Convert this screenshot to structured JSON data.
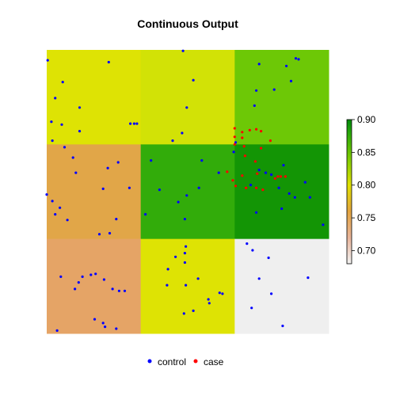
{
  "chart_data": {
    "type": "heatmap",
    "title": "Continuous Output",
    "xlabel": "",
    "ylabel": "",
    "grid": false,
    "xlim": [
      0,
      3
    ],
    "ylim": [
      0,
      3
    ],
    "cells": [
      {
        "col": 0,
        "row": 2,
        "color": "#DEE304"
      },
      {
        "col": 1,
        "row": 2,
        "color": "#D2E206"
      },
      {
        "col": 2,
        "row": 2,
        "color": "#6DC806"
      },
      {
        "col": 0,
        "row": 1,
        "color": "#E1A648"
      },
      {
        "col": 1,
        "row": 1,
        "color": "#32AC0A"
      },
      {
        "col": 2,
        "row": 1,
        "color": "#139505"
      },
      {
        "col": 0,
        "row": 0,
        "color": "#E5A466"
      },
      {
        "col": 1,
        "row": 0,
        "color": "#DEE304"
      },
      {
        "col": 2,
        "row": 0,
        "color": "#EFEFEF"
      }
    ],
    "colorbar": {
      "range": [
        0.68,
        0.9
      ],
      "ticks": [
        "0.70",
        "0.75",
        "0.80",
        "0.85",
        "0.90"
      ],
      "tick_values": [
        0.7,
        0.75,
        0.8,
        0.85,
        0.9
      ],
      "stops": [
        {
          "value": 0.68,
          "color": "#F2F2F2"
        },
        {
          "value": 0.72,
          "color": "#E8B49A"
        },
        {
          "value": 0.76,
          "color": "#E3A43E"
        },
        {
          "value": 0.8,
          "color": "#E0E000"
        },
        {
          "value": 0.84,
          "color": "#7FCC00"
        },
        {
          "value": 0.88,
          "color": "#28A80A"
        },
        {
          "value": 0.9,
          "color": "#00890A"
        }
      ]
    },
    "legend": {
      "position": "bottom",
      "entries": [
        {
          "label": "control",
          "color": "#0000FF"
        },
        {
          "label": "case",
          "color": "#FF0000"
        }
      ]
    },
    "series": [
      {
        "name": "control",
        "color": "#0000FF",
        "points": [
          [
            0.01,
            2.89
          ],
          [
            0.66,
            2.87
          ],
          [
            0.17,
            2.66
          ],
          [
            0.09,
            2.49
          ],
          [
            0.35,
            2.39
          ],
          [
            0.05,
            2.24
          ],
          [
            0.16,
            2.21
          ],
          [
            0.35,
            2.14
          ],
          [
            0.89,
            2.22
          ],
          [
            0.93,
            2.22
          ],
          [
            0.96,
            2.22
          ],
          [
            0.06,
            2.04
          ],
          [
            1.45,
            2.99
          ],
          [
            1.56,
            2.68
          ],
          [
            1.49,
            2.39
          ],
          [
            1.44,
            2.12
          ],
          [
            1.34,
            2.04
          ],
          [
            2.68,
            2.9
          ],
          [
            2.65,
            2.91
          ],
          [
            2.55,
            2.83
          ],
          [
            2.6,
            2.67
          ],
          [
            2.26,
            2.85
          ],
          [
            2.23,
            2.57
          ],
          [
            2.21,
            2.41
          ],
          [
            2.42,
            2.58
          ],
          [
            2.01,
            2.02
          ],
          [
            0.19,
            1.97
          ],
          [
            0.28,
            1.86
          ],
          [
            0.76,
            1.81
          ],
          [
            0.65,
            1.75
          ],
          [
            0.31,
            1.7
          ],
          [
            0.88,
            1.54
          ],
          [
            0.6,
            1.53
          ],
          [
            0.0,
            1.47
          ],
          [
            0.06,
            1.4
          ],
          [
            0.14,
            1.33
          ],
          [
            0.09,
            1.26
          ],
          [
            0.22,
            1.2
          ],
          [
            0.74,
            1.21
          ],
          [
            0.67,
            1.06
          ],
          [
            0.56,
            1.05
          ],
          [
            1.11,
            1.83
          ],
          [
            1.65,
            1.83
          ],
          [
            1.62,
            1.54
          ],
          [
            1.4,
            1.39
          ],
          [
            1.2,
            1.52
          ],
          [
            1.49,
            1.46
          ],
          [
            1.05,
            1.26
          ],
          [
            1.47,
            1.21
          ],
          [
            1.83,
            1.7
          ],
          [
            1.99,
            1.92
          ],
          [
            2.26,
            1.73
          ],
          [
            2.33,
            1.7
          ],
          [
            2.52,
            1.78
          ],
          [
            2.47,
            1.54
          ],
          [
            2.39,
            1.68
          ],
          [
            2.17,
            1.57
          ],
          [
            2.58,
            1.48
          ],
          [
            2.8,
            1.44
          ],
          [
            2.75,
            1.6
          ],
          [
            2.64,
            1.44
          ],
          [
            2.5,
            1.32
          ],
          [
            2.23,
            1.28
          ],
          [
            2.94,
            1.15
          ],
          [
            0.15,
            0.6
          ],
          [
            0.38,
            0.6
          ],
          [
            0.47,
            0.62
          ],
          [
            0.52,
            0.63
          ],
          [
            0.34,
            0.54
          ],
          [
            0.61,
            0.57
          ],
          [
            0.7,
            0.47
          ],
          [
            0.77,
            0.45
          ],
          [
            0.83,
            0.45
          ],
          [
            0.3,
            0.47
          ],
          [
            0.6,
            0.11
          ],
          [
            0.51,
            0.15
          ],
          [
            0.62,
            0.07
          ],
          [
            0.74,
            0.05
          ],
          [
            0.11,
            0.03
          ],
          [
            1.48,
            0.92
          ],
          [
            1.47,
            0.85
          ],
          [
            1.37,
            0.81
          ],
          [
            1.47,
            0.75
          ],
          [
            1.29,
            0.68
          ],
          [
            1.61,
            0.58
          ],
          [
            1.48,
            0.51
          ],
          [
            1.28,
            0.51
          ],
          [
            1.84,
            0.43
          ],
          [
            1.87,
            0.42
          ],
          [
            1.72,
            0.36
          ],
          [
            1.73,
            0.32
          ],
          [
            1.56,
            0.24
          ],
          [
            1.46,
            0.21
          ],
          [
            2.13,
            0.95
          ],
          [
            2.19,
            0.88
          ],
          [
            2.36,
            0.8
          ],
          [
            2.26,
            0.58
          ],
          [
            2.39,
            0.42
          ],
          [
            2.78,
            0.59
          ],
          [
            2.18,
            0.27
          ],
          [
            2.51,
            0.08
          ]
        ]
      },
      {
        "name": "case",
        "color": "#FF0000",
        "points": [
          [
            2.0,
            2.17
          ],
          [
            2.08,
            2.13
          ],
          [
            2.16,
            2.15
          ],
          [
            2.23,
            2.16
          ],
          [
            2.28,
            2.14
          ],
          [
            2.0,
            2.08
          ],
          [
            2.08,
            2.07
          ],
          [
            2.0,
            2.0
          ],
          [
            2.1,
            1.98
          ],
          [
            2.38,
            2.04
          ],
          [
            2.28,
            1.96
          ],
          [
            2.11,
            1.88
          ],
          [
            2.22,
            1.82
          ],
          [
            1.92,
            1.71
          ],
          [
            2.08,
            1.67
          ],
          [
            2.24,
            1.69
          ],
          [
            2.43,
            1.64
          ],
          [
            2.54,
            1.66
          ],
          [
            2.46,
            1.66
          ],
          [
            2.49,
            1.66
          ],
          [
            2.01,
            1.56
          ],
          [
            2.12,
            1.54
          ],
          [
            2.23,
            1.54
          ],
          [
            2.3,
            1.52
          ],
          [
            1.98,
            1.62
          ]
        ]
      }
    ]
  }
}
